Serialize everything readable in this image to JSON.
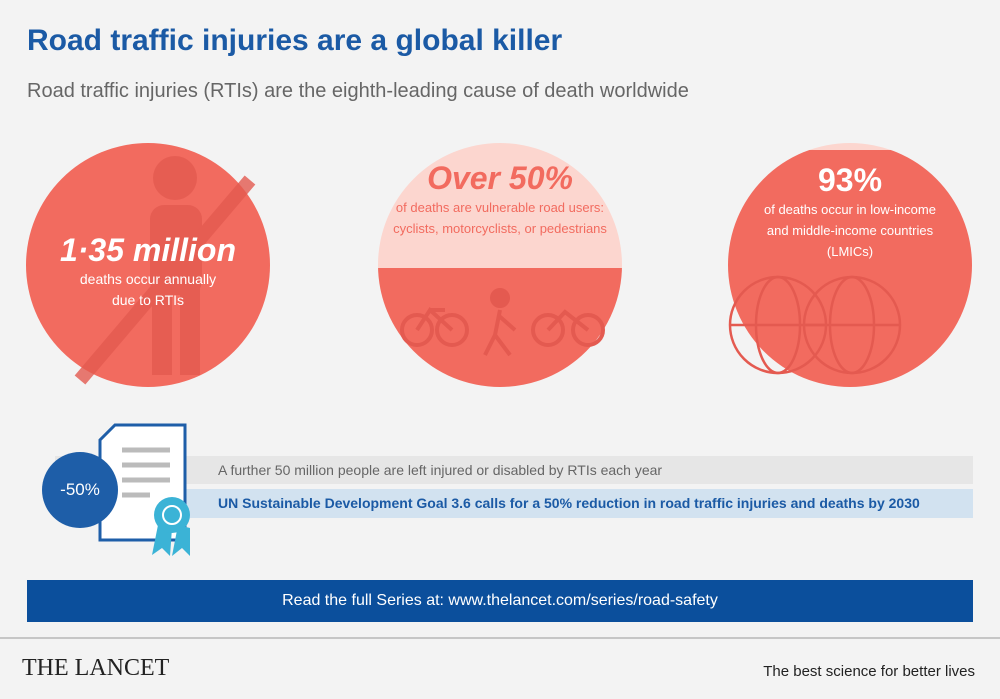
{
  "header": {
    "title": "Road traffic injuries are a global killer",
    "subtitle": "Road traffic injuries (RTIs) are the eighth-leading cause of death worldwide"
  },
  "circles": [
    {
      "headline": "1·35 million",
      "lines": [
        "deaths occur annually",
        "due to RTIs"
      ]
    },
    {
      "headline": "Over 50%",
      "lines": [
        "of deaths are vulnerable road users:",
        "cyclists, motorcyclists, or pedestrians"
      ]
    },
    {
      "headline": "93%",
      "lines": [
        "of deaths occur in low-income",
        "and middle-income countries",
        "(LMICs)"
      ]
    }
  ],
  "badge": "-50%",
  "notes": [
    "A further 50 million people are left injured or disabled by RTIs each year",
    "UN Sustainable Development Goal 3.6 calls for a 50% reduction in road traffic injuries and deaths by 2030"
  ],
  "banner": "Read the full Series at: www.thelancet.com/series/road-safety",
  "footer": {
    "brand": "THE LANCET",
    "tagline": "The best science for better lives"
  }
}
